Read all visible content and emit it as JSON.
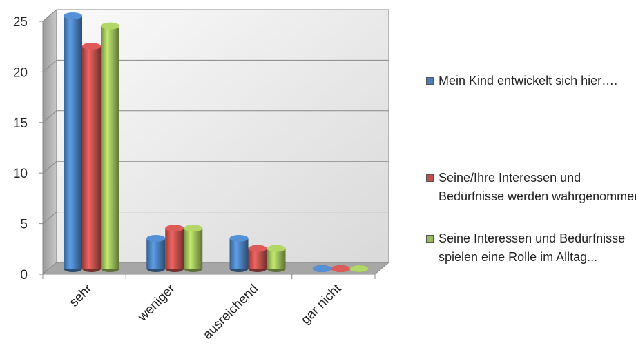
{
  "chart_data": {
    "type": "bar3d",
    "categories": [
      "sehr",
      "weniger",
      "ausreichend",
      "gar nicht"
    ],
    "series": [
      {
        "name": "Mein Kind entwickelt  sich hier….",
        "color": "#4a7ebb",
        "values": [
          25,
          3,
          3,
          0
        ]
      },
      {
        "name": "Seine/Ihre Interessen und Bedürfnisse werden wahrgenommen",
        "color": "#c0504d",
        "values": [
          22,
          4,
          2,
          0
        ]
      },
      {
        "name": "Seine  Interessen und Bedürfnisse spielen eine Rolle im Alltag...",
        "color": "#9bbb59",
        "values": [
          24,
          4,
          2,
          0
        ]
      }
    ],
    "ylim": [
      0,
      25
    ],
    "yticks": [
      0,
      5,
      10,
      15,
      20,
      25
    ],
    "grid": true,
    "legend": "right"
  }
}
